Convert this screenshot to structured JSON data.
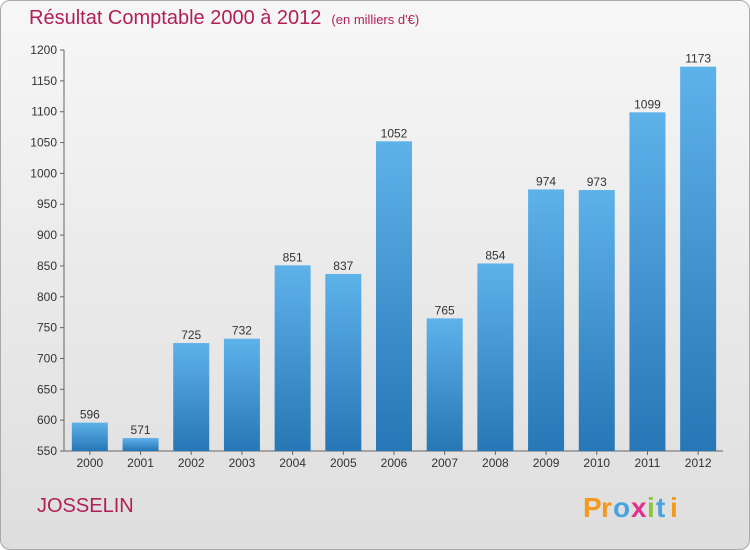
{
  "title": "Résultat Comptable 2000 à 2012",
  "subtitle": "(en milliers d'€)",
  "location": "JOSSELIN",
  "logo_text": "Proxiti",
  "colors": {
    "title": "#b11f56",
    "bar_light": "#5eb2ea",
    "bar_dark": "#2677b5"
  },
  "chart_data": {
    "type": "bar",
    "title": "Résultat Comptable 2000 à 2012",
    "categories": [
      "2000",
      "2001",
      "2002",
      "2003",
      "2004",
      "2005",
      "2006",
      "2007",
      "2008",
      "2009",
      "2010",
      "2011",
      "2012"
    ],
    "values": [
      596,
      571,
      725,
      732,
      851,
      837,
      1052,
      765,
      854,
      974,
      973,
      1099,
      1173
    ],
    "ylim": [
      550,
      1200
    ],
    "yticks": [
      550,
      600,
      650,
      700,
      750,
      800,
      850,
      900,
      950,
      1000,
      1050,
      1100,
      1150,
      1200
    ],
    "grid": false,
    "legend": "none"
  }
}
